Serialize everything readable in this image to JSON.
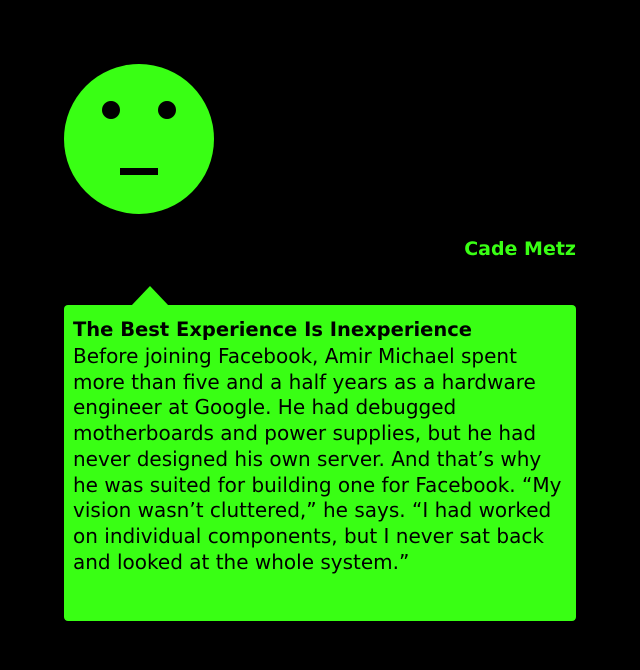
{
  "avatar": {
    "icon": "neutral-face-icon",
    "color": "#39ff14"
  },
  "author": {
    "name": "Cade Metz"
  },
  "quote": {
    "title": "The Best Experience Is Inexperience",
    "body": "Before joining Facebook, Amir Michael spent more than five and a half years as a hardware engineer at Google. He had debugged motherboards and power supplies, but he had never designed his own server. And that’s why he was suited for building one for Facebook. “My vision wasn’t cluttered,” he says. “I had worked on individual components, but I never sat back and looked at the whole system.”"
  },
  "colors": {
    "background": "#000000",
    "accent": "#39ff14",
    "text_on_accent": "#000000"
  }
}
